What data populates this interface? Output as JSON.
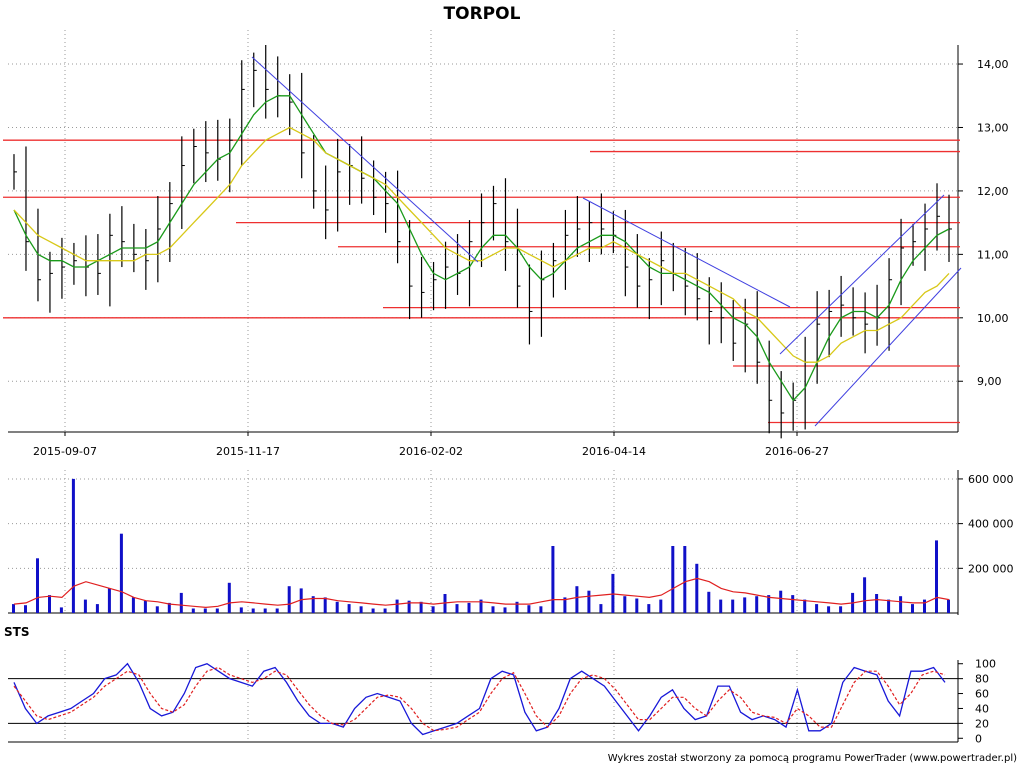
{
  "chart_data": [
    {
      "type": "candlestick",
      "title": "TORPOL",
      "x_tick_labels": [
        "2015-09-07",
        "2015-11-17",
        "2016-02-02",
        "2016-04-14",
        "2016-06-27"
      ],
      "y_tick_labels": [
        "9,00",
        "10,00",
        "11,00",
        "12,00",
        "13,00",
        "14,00"
      ],
      "y_ticks": [
        9,
        10,
        11,
        12,
        13,
        14
      ],
      "ylim": [
        8.2,
        14.3
      ],
      "grid": true,
      "colors": {
        "bars": "#000000",
        "ma_short": "#1a9a1a",
        "ma_long": "#d8c818",
        "support_resistance": "#ee3030",
        "trendlines": "#4040e0"
      },
      "series": [
        {
          "name": "",
          "type": "close",
          "values": [
            12.3,
            11.2,
            10.6,
            10.7,
            10.8,
            10.9,
            10.8,
            10.7,
            11.3,
            11.2,
            11.0,
            10.9,
            11.4,
            11.8,
            12.4,
            12.7,
            12.6,
            12.5,
            12.8,
            13.6,
            13.9,
            13.6,
            13.5,
            13.4,
            12.6,
            12.0,
            11.7,
            12.3,
            12.4,
            12.2,
            11.9,
            11.8,
            11.2,
            10.5,
            10.4,
            10.6,
            10.8,
            10.7,
            11.2,
            11.5,
            11.8,
            11.2,
            10.5,
            10.1,
            10.6,
            10.9,
            11.3,
            11.4,
            11.5,
            11.4,
            11.3,
            10.8,
            10.5,
            10.6,
            10.9,
            10.7,
            10.5,
            10.3,
            10.1,
            10.0,
            9.6,
            9.9,
            9.3,
            8.7,
            8.5,
            8.7,
            9.3,
            9.9,
            10.1,
            10.2,
            10.0,
            9.9,
            10.0,
            10.6,
            11.1,
            11.2,
            11.4,
            11.6,
            11.4
          ]
        },
        {
          "name": "",
          "type": "moving_average",
          "values": [
            11.7,
            11.3,
            11.0,
            10.9,
            10.9,
            10.8,
            10.8,
            10.9,
            11.0,
            11.1,
            11.1,
            11.1,
            11.2,
            11.5,
            11.8,
            12.1,
            12.3,
            12.5,
            12.6,
            12.9,
            13.2,
            13.4,
            13.5,
            13.5,
            13.2,
            12.9,
            12.6,
            12.5,
            12.4,
            12.3,
            12.2,
            12.0,
            11.8,
            11.4,
            11.0,
            10.7,
            10.6,
            10.7,
            10.8,
            11.1,
            11.3,
            11.3,
            11.1,
            10.8,
            10.6,
            10.7,
            10.9,
            11.1,
            11.2,
            11.3,
            11.3,
            11.2,
            11.0,
            10.8,
            10.7,
            10.7,
            10.6,
            10.5,
            10.4,
            10.2,
            10.0,
            9.9,
            9.7,
            9.3,
            9.0,
            8.7,
            8.9,
            9.3,
            9.7,
            10.0,
            10.1,
            10.1,
            10.0,
            10.2,
            10.6,
            10.9,
            11.1,
            11.3,
            11.4
          ]
        },
        {
          "name": "",
          "type": "moving_average",
          "values": [
            11.7,
            11.5,
            11.3,
            11.2,
            11.1,
            11.0,
            10.9,
            10.9,
            10.9,
            10.9,
            10.9,
            11.0,
            11.0,
            11.1,
            11.3,
            11.5,
            11.7,
            11.9,
            12.1,
            12.4,
            12.6,
            12.8,
            12.9,
            13.0,
            12.9,
            12.8,
            12.6,
            12.5,
            12.4,
            12.3,
            12.2,
            12.1,
            11.9,
            11.7,
            11.5,
            11.3,
            11.1,
            11.0,
            10.9,
            10.9,
            11.0,
            11.1,
            11.1,
            11.0,
            10.9,
            10.8,
            10.9,
            11.0,
            11.1,
            11.1,
            11.2,
            11.1,
            11.0,
            10.9,
            10.8,
            10.7,
            10.7,
            10.6,
            10.5,
            10.4,
            10.3,
            10.1,
            10.0,
            9.8,
            9.6,
            9.4,
            9.3,
            9.3,
            9.4,
            9.6,
            9.7,
            9.8,
            9.8,
            9.9,
            10.0,
            10.2,
            10.4,
            10.5,
            10.7
          ]
        }
      ],
      "horizontal_levels": [
        12.8,
        12.62,
        11.9,
        11.5,
        11.12,
        10.16,
        10.0,
        9.24,
        8.35
      ]
    },
    {
      "type": "bar",
      "y_tick_labels": [
        "200 000",
        "400 000",
        "600 000"
      ],
      "y_ticks": [
        200000,
        400000,
        600000
      ],
      "ylim": [
        0,
        640000
      ],
      "series": [
        {
          "name": "",
          "type": "volume",
          "values": [
            40000,
            35000,
            245000,
            80000,
            25000,
            600000,
            60000,
            40000,
            110000,
            355000,
            70000,
            55000,
            30000,
            45000,
            90000,
            20000,
            20000,
            20000,
            135000,
            25000,
            20000,
            20000,
            20000,
            120000,
            110000,
            75000,
            70000,
            50000,
            40000,
            30000,
            20000,
            20000,
            60000,
            55000,
            50000,
            30000,
            85000,
            40000,
            45000,
            60000,
            30000,
            25000,
            50000,
            35000,
            30000,
            300000,
            70000,
            120000,
            100000,
            40000,
            175000,
            75000,
            65000,
            40000,
            60000,
            300000,
            300000,
            220000,
            95000,
            60000,
            60000,
            70000,
            75000,
            80000,
            100000,
            80000,
            60000,
            40000,
            30000,
            30000,
            90000,
            160000,
            85000,
            60000,
            75000,
            40000,
            60000,
            325000,
            60000
          ]
        },
        {
          "name": "",
          "type": "moving_average",
          "values": [
            40000,
            45000,
            70000,
            75000,
            70000,
            120000,
            140000,
            125000,
            110000,
            95000,
            70000,
            55000,
            50000,
            40000,
            35000,
            30000,
            25000,
            30000,
            45000,
            50000,
            45000,
            40000,
            35000,
            40000,
            60000,
            65000,
            65000,
            55000,
            50000,
            45000,
            40000,
            35000,
            40000,
            45000,
            45000,
            40000,
            45000,
            50000,
            50000,
            50000,
            45000,
            40000,
            40000,
            40000,
            50000,
            60000,
            60000,
            70000,
            75000,
            80000,
            85000,
            80000,
            75000,
            70000,
            80000,
            110000,
            140000,
            155000,
            140000,
            110000,
            95000,
            90000,
            80000,
            70000,
            65000,
            60000,
            55000,
            50000,
            45000,
            40000,
            45000,
            55000,
            60000,
            55000,
            50000,
            45000,
            45000,
            70000,
            60000
          ]
        }
      ]
    },
    {
      "type": "line",
      "title": "STS",
      "y_tick_labels": [
        "0",
        "20",
        "40",
        "60",
        "80",
        "100"
      ],
      "y_ticks": [
        0,
        20,
        40,
        60,
        80,
        100
      ],
      "ylim": [
        -5,
        105
      ],
      "reference_lines": [
        80,
        20
      ],
      "series": [
        {
          "name": "",
          "type": "stochastic_k",
          "values": [
            75,
            40,
            20,
            30,
            35,
            40,
            50,
            60,
            80,
            85,
            100,
            75,
            40,
            30,
            35,
            60,
            95,
            100,
            90,
            80,
            75,
            70,
            90,
            95,
            75,
            50,
            30,
            20,
            20,
            15,
            40,
            55,
            60,
            55,
            50,
            20,
            5,
            10,
            15,
            20,
            30,
            40,
            80,
            90,
            85,
            35,
            10,
            15,
            40,
            80,
            90,
            80,
            70,
            50,
            30,
            10,
            30,
            55,
            65,
            40,
            25,
            30,
            70,
            70,
            35,
            25,
            30,
            25,
            15,
            65,
            10,
            10,
            20,
            75,
            95,
            90,
            85,
            50,
            30,
            90,
            90,
            95,
            75
          ]
        },
        {
          "name": "",
          "type": "stochastic_d",
          "values": [
            70,
            50,
            30,
            25,
            30,
            35,
            45,
            55,
            70,
            80,
            90,
            85,
            60,
            40,
            35,
            45,
            70,
            90,
            95,
            85,
            80,
            75,
            80,
            90,
            85,
            65,
            45,
            30,
            20,
            18,
            25,
            40,
            55,
            58,
            55,
            40,
            20,
            10,
            12,
            15,
            25,
            35,
            60,
            80,
            88,
            60,
            30,
            15,
            30,
            60,
            80,
            85,
            80,
            65,
            45,
            25,
            25,
            40,
            55,
            55,
            40,
            30,
            50,
            65,
            55,
            35,
            30,
            28,
            20,
            40,
            30,
            15,
            15,
            45,
            75,
            90,
            90,
            70,
            45,
            60,
            85,
            90,
            85
          ]
        }
      ]
    }
  ],
  "footer": "Wykres został stworzony za pomocą programu PowerTrader (www.powertrader.pl)"
}
